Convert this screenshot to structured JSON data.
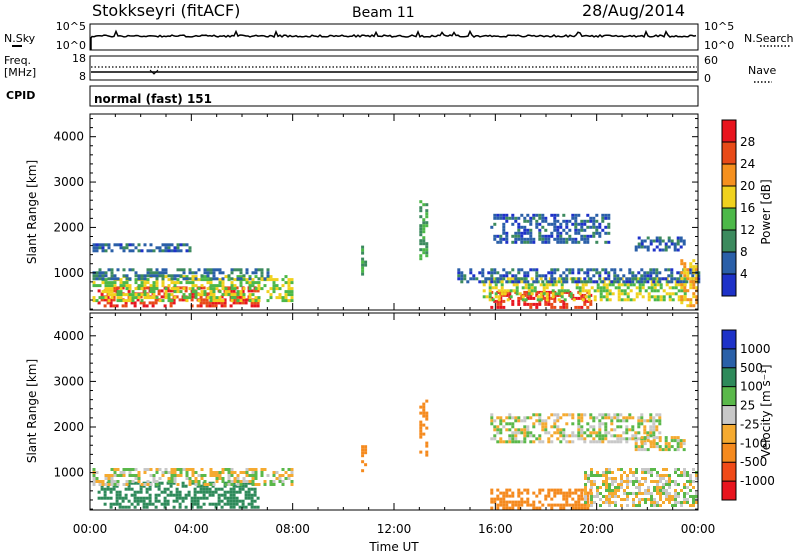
{
  "header": {
    "title": "Stokkseyri (fitACF)",
    "beam": "Beam 11",
    "date": "28/Aug/2014"
  },
  "nsky_panel": {
    "left_label": "N.Sky",
    "ticks_left": [
      "10^5",
      "10^0"
    ],
    "right_label": "N.Search",
    "ticks_right": [
      "10^5",
      "10^0"
    ]
  },
  "freq_panel": {
    "left_label_1": "Freq.",
    "left_label_2": "[MHz]",
    "ticks_left": [
      "18",
      "8"
    ],
    "right_label": "Nave",
    "ticks_right": [
      "60",
      "0"
    ]
  },
  "cpid": {
    "label": "CPID",
    "value": "normal (fast) 151"
  },
  "colors": {
    "power_scale": [
      "#1e32c8",
      "#2a5fa8",
      "#3c8a5e",
      "#4cb848",
      "#f0d21e",
      "#f5901e",
      "#e84a18",
      "#e8141e"
    ],
    "velocity_scale": [
      "#e8141e",
      "#f04a18",
      "#f58a1e",
      "#f5aa30",
      "#c8c8c8",
      "#5ab84a",
      "#2e8a5a",
      "#2a60a8",
      "#1e32c8"
    ]
  },
  "chart_data": [
    {
      "type": "heatmap",
      "name_panel": "power",
      "ylabel": "Slant Range [km]",
      "ylim": [
        180,
        4500
      ],
      "yticks": [
        "1000",
        "2000",
        "3000",
        "4000"
      ],
      "xlim": [
        0,
        24
      ],
      "colorbar_label": "Power [dB]",
      "colorbar_ticks": [
        "28",
        "24",
        "20",
        "16",
        "12",
        "8",
        "4"
      ],
      "colorbar_range": [
        0,
        32
      ],
      "regions": [
        {
          "t0": 0.3,
          "t1": 6.6,
          "r0": 250,
          "r1": 700,
          "value": 28
        },
        {
          "t0": 0.1,
          "t1": 8.0,
          "r0": 400,
          "r1": 950,
          "value": 16
        },
        {
          "t0": 0.1,
          "t1": 7.0,
          "r0": 900,
          "r1": 1100,
          "value": 8
        },
        {
          "t0": 0.1,
          "t1": 4.0,
          "r0": 1500,
          "r1": 1650,
          "value": 6
        },
        {
          "t0": 15.8,
          "t1": 19.8,
          "r0": 250,
          "r1": 600,
          "value": 28
        },
        {
          "t0": 15.5,
          "t1": 23.5,
          "r0": 400,
          "r1": 900,
          "value": 16
        },
        {
          "t0": 14.5,
          "t1": 24.0,
          "r0": 800,
          "r1": 1100,
          "value": 6
        },
        {
          "t0": 10.7,
          "t1": 10.9,
          "r0": 1000,
          "r1": 1600,
          "value": 12
        },
        {
          "t0": 13.0,
          "t1": 13.3,
          "r0": 1300,
          "r1": 2600,
          "value": 12
        },
        {
          "t0": 15.8,
          "t1": 20.5,
          "r0": 1700,
          "r1": 2300,
          "value": 6
        },
        {
          "t0": 21.5,
          "t1": 23.5,
          "r0": 1500,
          "r1": 1800,
          "value": 6
        },
        {
          "t0": 23.3,
          "t1": 24.0,
          "r0": 300,
          "r1": 1300,
          "value": 20
        }
      ]
    },
    {
      "type": "heatmap",
      "name_panel": "velocity",
      "ylabel": "Slant Range [km]",
      "ylim": [
        180,
        4500
      ],
      "yticks": [
        "1000",
        "2000",
        "3000",
        "4000"
      ],
      "xlabel": "Time UT",
      "xlim": [
        0,
        24
      ],
      "xticks": [
        "00:00",
        "04:00",
        "08:00",
        "12:00",
        "16:00",
        "20:00",
        "00:00"
      ],
      "colorbar_label": "Velocity [m s⁻¹]",
      "colorbar_ticks": [
        "1000",
        "500",
        "100",
        "25",
        "-25",
        "-100",
        "-500",
        "-1000"
      ],
      "regions": [
        {
          "t0": 0.3,
          "t1": 6.6,
          "r0": 250,
          "r1": 800,
          "value": 200
        },
        {
          "t0": 0.1,
          "t1": 8.0,
          "r0": 750,
          "r1": 1100,
          "value": 0
        },
        {
          "t0": 15.8,
          "t1": 19.8,
          "r0": 250,
          "r1": 650,
          "value": -200
        },
        {
          "t0": 19.5,
          "t1": 24.0,
          "r0": 300,
          "r1": 1100,
          "value": 0
        },
        {
          "t0": 10.7,
          "t1": 10.9,
          "r0": 1000,
          "r1": 1600,
          "value": -300
        },
        {
          "t0": 13.0,
          "t1": 13.3,
          "r0": 1300,
          "r1": 2600,
          "value": -300
        },
        {
          "t0": 15.8,
          "t1": 22.5,
          "r0": 1700,
          "r1": 2300,
          "value": 0
        },
        {
          "t0": 21.5,
          "t1": 23.5,
          "r0": 1500,
          "r1": 1800,
          "value": 0
        }
      ]
    }
  ]
}
